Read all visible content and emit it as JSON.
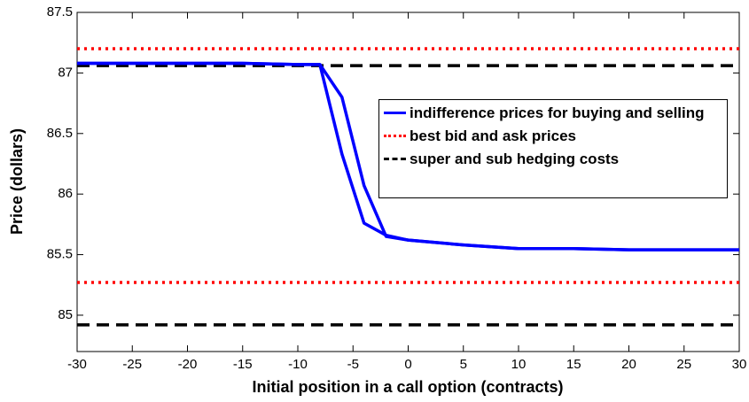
{
  "chart_data": {
    "type": "line",
    "x_label": "Initial position in a call option (contracts)",
    "y_label": "Price (dollars)",
    "x": [
      -30,
      -25,
      -20,
      -15,
      -10,
      -8,
      -6,
      -4,
      -2,
      0,
      5,
      10,
      15,
      20,
      25,
      30
    ],
    "series": [
      {
        "name": "indifference prices for buying and selling",
        "color": "#0000ff",
        "values": [
          87.08,
          87.08,
          87.08,
          87.08,
          87.07,
          87.07,
          86.8,
          86.07,
          85.65,
          85.62,
          85.58,
          85.55,
          85.55,
          85.54,
          85.54,
          85.54
        ]
      },
      {
        "color": "#0000ff",
        "values": [
          87.08,
          87.08,
          87.08,
          87.08,
          87.07,
          87.07,
          86.33,
          85.76,
          85.66,
          85.62,
          85.58,
          85.55,
          85.55,
          85.54,
          85.54,
          85.54
        ]
      }
    ],
    "reference_lines": [
      {
        "name": "best bid and ask prices",
        "color": "#ff0000",
        "style": "dotted",
        "values": [
          87.2,
          85.27
        ]
      },
      {
        "name": "super and sub hedging costs",
        "color": "#000000",
        "style": "dashed",
        "values": [
          87.06,
          84.92
        ]
      }
    ],
    "xlim": [
      -30,
      30
    ],
    "xticks": [
      -30,
      -25,
      -20,
      -15,
      -10,
      -5,
      0,
      5,
      10,
      15,
      20,
      25,
      30
    ],
    "ylim": [
      84.7,
      87.5
    ],
    "yticks": [
      85,
      85.5,
      86,
      86.5,
      87,
      87.5
    ]
  }
}
